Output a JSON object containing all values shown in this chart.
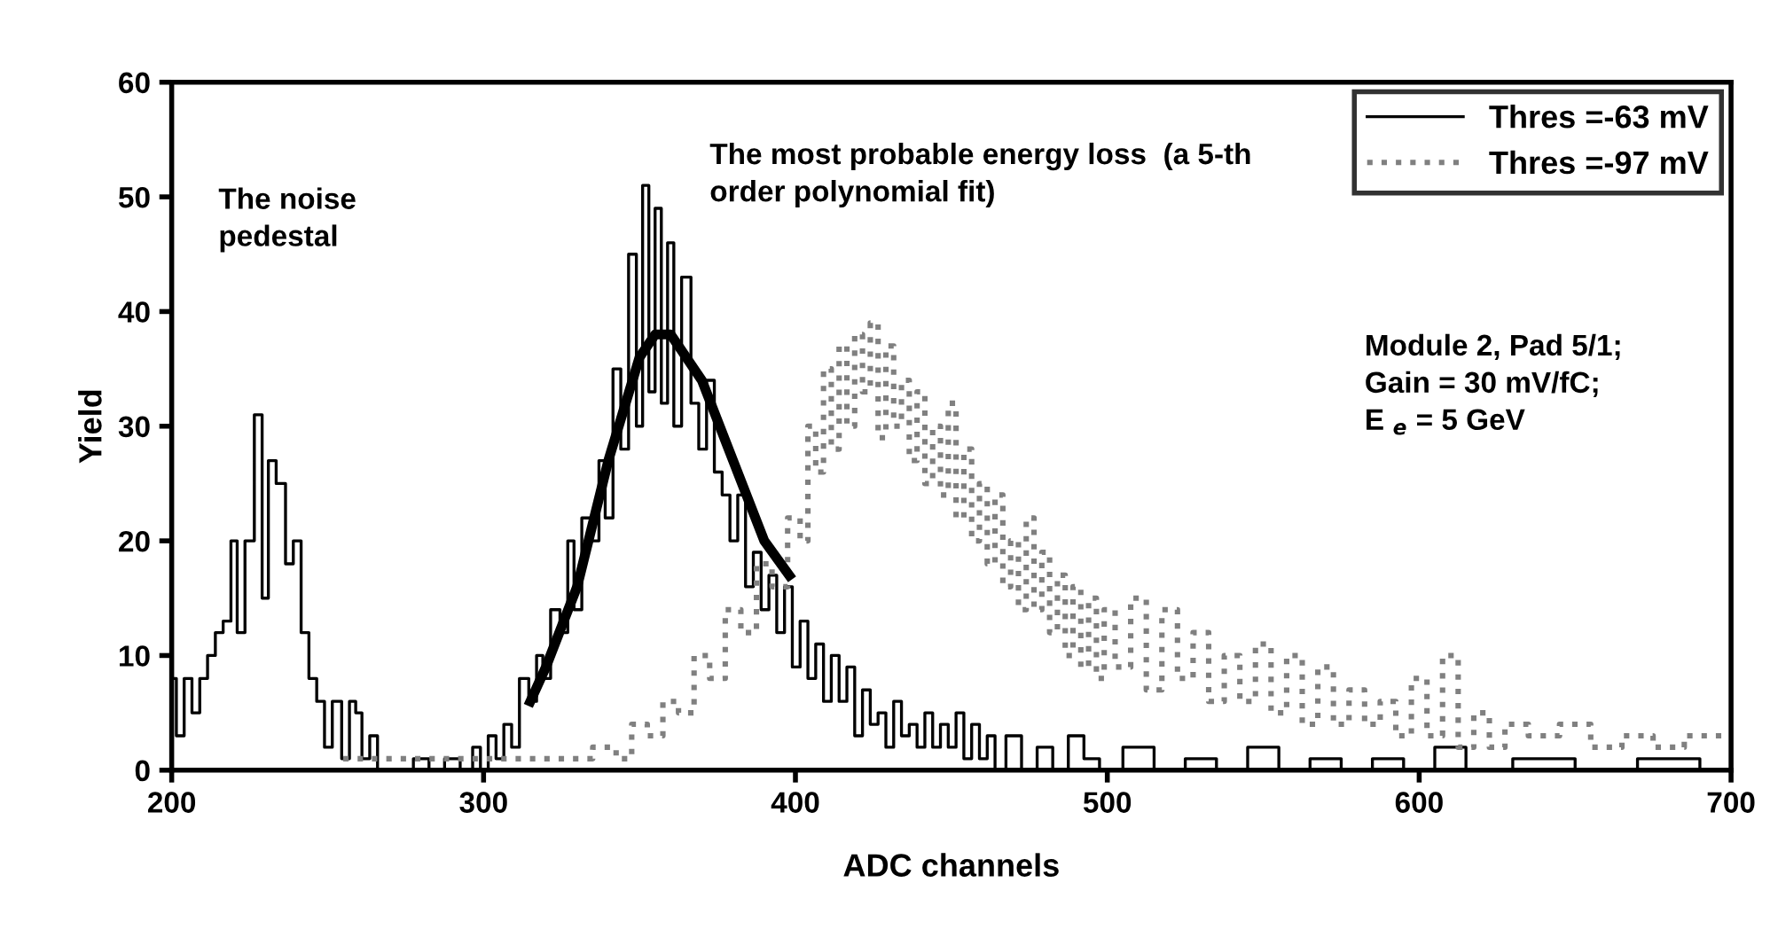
{
  "chart_data": {
    "type": "step",
    "xlabel": "ADC channels",
    "ylabel": "Yield",
    "xlim": [
      200,
      700
    ],
    "ylim": [
      0,
      60
    ],
    "xticks": [
      200,
      300,
      400,
      500,
      600,
      700
    ],
    "yticks": [
      0,
      10,
      20,
      30,
      40,
      50,
      60
    ],
    "grid": false,
    "legend": "top right",
    "marker": "none",
    "annotations": [
      "The noise\npedestal",
      "The most probable energy loss  (a 5-th\norder polynomial fit)",
      "Module 2, Pad 5/1;\nGain = 30 mV/fC;\nE $_{e}$ = 5 GeV"
    ],
    "series": [
      {
        "name": "Thres =-63 mV",
        "color": "#000000",
        "line_style": "solid",
        "x": [
          200,
          203,
          205,
          208,
          210,
          213,
          215,
          218,
          220,
          222,
          225,
          228,
          230,
          232,
          235,
          238,
          240,
          243,
          245,
          248,
          250,
          253,
          256,
          258,
          260,
          262,
          265,
          267,
          270,
          275,
          280,
          285,
          290,
          295,
          298,
          300,
          303,
          305,
          308,
          310,
          313,
          316,
          318,
          320,
          323,
          326,
          328,
          330,
          333,
          336,
          338,
          340,
          343,
          345,
          348,
          350,
          352,
          354,
          356,
          358,
          360,
          362,
          365,
          368,
          370,
          373,
          375,
          378,
          380,
          383,
          385,
          388,
          390,
          393,
          395,
          398,
          400,
          403,
          405,
          408,
          410,
          413,
          415,
          418,
          420,
          423,
          425,
          428,
          430,
          433,
          435,
          438,
          440,
          443,
          445,
          448,
          450,
          453,
          455,
          458,
          460,
          463,
          465,
          470,
          475,
          480,
          485,
          490,
          495,
          500,
          510,
          520,
          530,
          540,
          550,
          560,
          570,
          580,
          590,
          600,
          610,
          620,
          640,
          660,
          680,
          700
        ],
        "values": [
          8,
          3,
          8,
          5,
          8,
          10,
          12,
          13,
          20,
          12,
          20,
          31,
          15,
          27,
          25,
          18,
          20,
          12,
          8,
          6,
          2,
          6,
          1,
          6,
          5,
          1,
          3,
          0,
          0,
          0,
          1,
          0,
          1,
          0,
          2,
          0,
          3,
          1,
          4,
          2,
          8,
          6,
          10,
          8,
          14,
          12,
          20,
          14,
          22,
          20,
          27,
          22,
          35,
          28,
          45,
          30,
          51,
          33,
          49,
          32,
          46,
          30,
          43,
          32,
          28,
          34,
          26,
          24,
          20,
          24,
          16,
          19,
          14,
          17,
          12,
          16,
          9,
          13,
          8,
          11,
          6,
          10,
          6,
          9,
          3,
          7,
          4,
          5,
          2,
          6,
          3,
          4,
          2,
          5,
          2,
          4,
          2,
          5,
          1,
          4,
          1,
          3,
          0,
          3,
          0,
          2,
          0,
          3,
          1,
          0,
          2,
          0,
          1,
          0,
          2,
          0,
          1,
          0,
          1,
          0,
          2,
          0,
          1,
          0,
          1,
          0
        ]
      },
      {
        "name": "Thres =-97 mV",
        "color": "#808080",
        "line_style": "dotted",
        "x": [
          255,
          300,
          330,
          340,
          345,
          350,
          355,
          360,
          365,
          370,
          375,
          380,
          385,
          390,
          395,
          400,
          403,
          405,
          408,
          410,
          413,
          415,
          418,
          420,
          423,
          425,
          428,
          430,
          433,
          435,
          438,
          440,
          443,
          445,
          448,
          450,
          453,
          455,
          458,
          460,
          463,
          465,
          468,
          470,
          473,
          475,
          478,
          480,
          483,
          485,
          488,
          490,
          493,
          495,
          498,
          500,
          505,
          510,
          515,
          520,
          525,
          530,
          535,
          540,
          545,
          550,
          555,
          560,
          565,
          570,
          575,
          580,
          585,
          590,
          595,
          600,
          605,
          610,
          615,
          620,
          625,
          630,
          640,
          650,
          660,
          670,
          680,
          690,
          700
        ],
        "values": [
          1,
          1,
          1,
          2,
          1,
          4,
          3,
          6,
          5,
          10,
          8,
          14,
          12,
          18,
          16,
          22,
          20,
          30,
          26,
          35,
          28,
          37,
          30,
          38,
          33,
          39,
          29,
          37,
          30,
          34,
          27,
          33,
          25,
          30,
          24,
          32,
          22,
          28,
          20,
          25,
          18,
          24,
          16,
          20,
          14,
          22,
          14,
          19,
          12,
          17,
          10,
          16,
          9,
          15,
          8,
          14,
          9,
          15,
          7,
          14,
          8,
          12,
          6,
          10,
          6,
          11,
          5,
          10,
          4,
          9,
          4,
          7,
          4,
          6,
          3,
          8,
          3,
          10,
          2,
          5,
          2,
          4,
          3,
          4,
          2,
          3,
          2,
          3,
          3
        ]
      },
      {
        "type": "line",
        "color": "#000000",
        "line_style": "solid",
        "x": [
          315,
          320,
          330,
          340,
          350,
          355,
          360,
          370,
          380,
          390,
          398
        ],
        "values": [
          6,
          9,
          16,
          27,
          36,
          38,
          38,
          34,
          27,
          20,
          17
        ]
      }
    ]
  }
}
